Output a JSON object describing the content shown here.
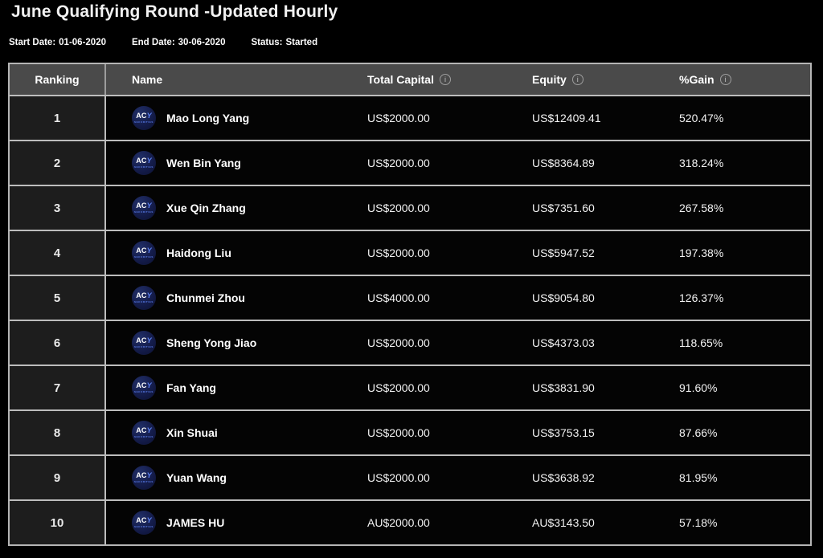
{
  "page": {
    "title": "June Qualifying Round -Updated Hourly",
    "meta": [
      {
        "label": "Start Date:",
        "value": "01-06-2020"
      },
      {
        "label": "End Date:",
        "value": "30-06-2020"
      },
      {
        "label": "Status:",
        "value": "Started"
      }
    ]
  },
  "icons": {
    "info": "i"
  },
  "branding": {
    "avatar_ac": "AC",
    "avatar_y": "Y",
    "avatar_subtext": "SECURITIES"
  },
  "colors": {
    "background": "#000000",
    "header_bg": "#4a4a4a",
    "rank_cell_bg": "#1d1d1d",
    "row_bg": "#040404",
    "border": "#bdbdbd",
    "avatar_bg": "#141c4a",
    "avatar_accent": "#5b7ff0",
    "text": "#ffffff"
  },
  "table": {
    "columns": [
      {
        "label": "Ranking",
        "has_info": false
      },
      {
        "label": "Name",
        "has_info": false
      },
      {
        "label": "Total Capital",
        "has_info": true
      },
      {
        "label": "Equity",
        "has_info": true
      },
      {
        "label": "%Gain",
        "has_info": true
      }
    ],
    "rows": [
      {
        "ranking": "1",
        "name": "Mao Long Yang",
        "total_capital": "US$2000.00",
        "equity": "US$12409.41",
        "gain": "520.47%"
      },
      {
        "ranking": "2",
        "name": "Wen Bin Yang",
        "total_capital": "US$2000.00",
        "equity": "US$8364.89",
        "gain": "318.24%"
      },
      {
        "ranking": "3",
        "name": "Xue Qin Zhang",
        "total_capital": "US$2000.00",
        "equity": "US$7351.60",
        "gain": "267.58%"
      },
      {
        "ranking": "4",
        "name": "Haidong Liu",
        "total_capital": "US$2000.00",
        "equity": "US$5947.52",
        "gain": "197.38%"
      },
      {
        "ranking": "5",
        "name": "Chunmei Zhou",
        "total_capital": "US$4000.00",
        "equity": "US$9054.80",
        "gain": "126.37%"
      },
      {
        "ranking": "6",
        "name": "Sheng Yong Jiao",
        "total_capital": "US$2000.00",
        "equity": "US$4373.03",
        "gain": "118.65%"
      },
      {
        "ranking": "7",
        "name": "Fan Yang",
        "total_capital": "US$2000.00",
        "equity": "US$3831.90",
        "gain": "91.60%"
      },
      {
        "ranking": "8",
        "name": "Xin Shuai",
        "total_capital": "US$2000.00",
        "equity": "US$3753.15",
        "gain": "87.66%"
      },
      {
        "ranking": "9",
        "name": "Yuan Wang",
        "total_capital": "US$2000.00",
        "equity": "US$3638.92",
        "gain": "81.95%"
      },
      {
        "ranking": "10",
        "name": "JAMES HU",
        "total_capital": "AU$2000.00",
        "equity": "AU$3143.50",
        "gain": "57.18%"
      }
    ]
  }
}
